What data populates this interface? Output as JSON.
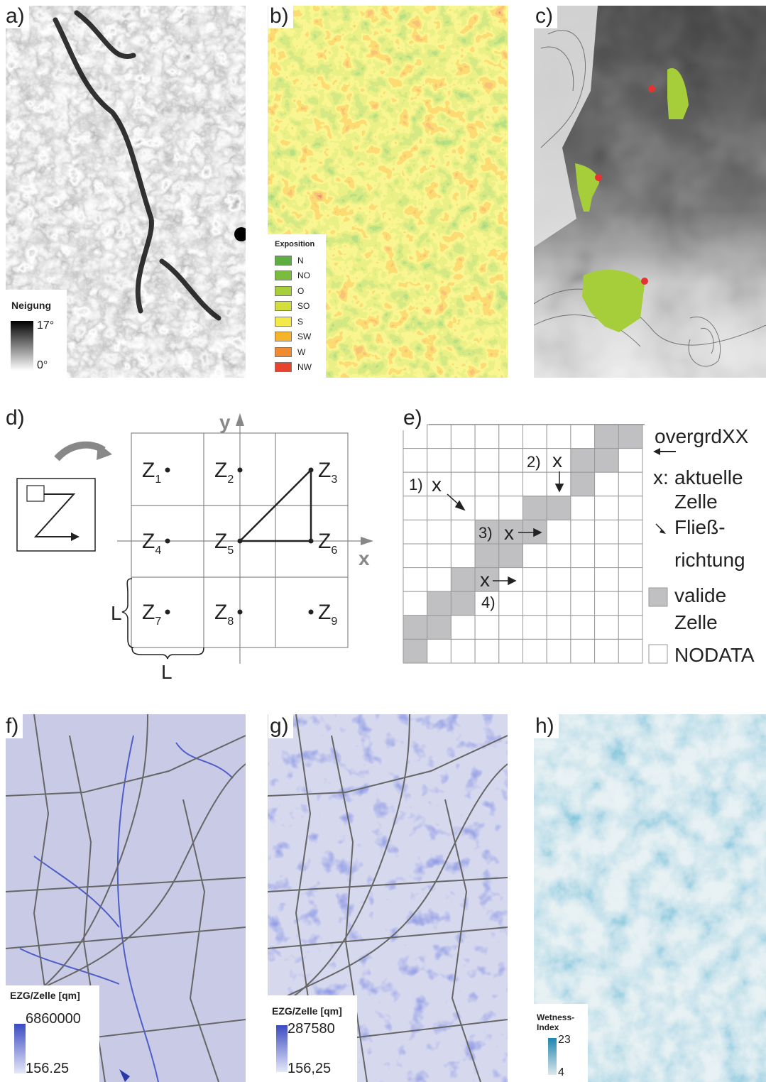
{
  "panels": {
    "a": {
      "label": "a)",
      "legend": {
        "title": "Neigung",
        "max": "17°",
        "min": "0°"
      }
    },
    "b": {
      "label": "b)",
      "legend": {
        "title": "Exposition",
        "items": [
          {
            "name": "N",
            "color": "#5cae41"
          },
          {
            "name": "NO",
            "color": "#7cbc3b"
          },
          {
            "name": "O",
            "color": "#a8cf3a"
          },
          {
            "name": "SO",
            "color": "#d2de3c"
          },
          {
            "name": "S",
            "color": "#f3ea4a"
          },
          {
            "name": "SW",
            "color": "#f7b42b"
          },
          {
            "name": "W",
            "color": "#ef8a30"
          },
          {
            "name": "NW",
            "color": "#e6442c"
          }
        ]
      }
    },
    "c": {
      "label": "c)"
    },
    "d": {
      "label": "d)",
      "axis_x": "x",
      "axis_y": "y",
      "cells": [
        {
          "z": "Z",
          "sub": "1"
        },
        {
          "z": "Z",
          "sub": "2"
        },
        {
          "z": "Z",
          "sub": "3"
        },
        {
          "z": "Z",
          "sub": "4"
        },
        {
          "z": "Z",
          "sub": "5"
        },
        {
          "z": "Z",
          "sub": "6"
        },
        {
          "z": "Z",
          "sub": "7"
        },
        {
          "z": "Z",
          "sub": "8"
        },
        {
          "z": "Z",
          "sub": "9"
        }
      ],
      "length_label": "L"
    },
    "e": {
      "label": "e)",
      "steps": [
        "1)",
        "2)",
        "3)",
        "4)"
      ],
      "current_mark": "x",
      "legend": {
        "grid_name": "overgrdXX",
        "x_key": "x:",
        "x_text_1": "aktuelle",
        "x_text_2": "Zelle",
        "flow_text_1": "Fließ-",
        "flow_text_2": "richtung",
        "valid_text_1": "valide",
        "valid_text_2": "Zelle",
        "nodata_text": "NODATA"
      },
      "valid_color": "#c0c0c2"
    },
    "f": {
      "label": "f)",
      "legend": {
        "title": "EZG/Zelle [qm]",
        "max": "6860000",
        "min": "156.25"
      }
    },
    "g": {
      "label": "g)",
      "legend": {
        "title": "EZG/Zelle [qm]",
        "max": "287580",
        "min": "156,25"
      }
    },
    "h": {
      "label": "h)",
      "legend": {
        "title_1": "Wetness-",
        "title_2": "Index",
        "max": "23",
        "min": "4"
      }
    }
  }
}
